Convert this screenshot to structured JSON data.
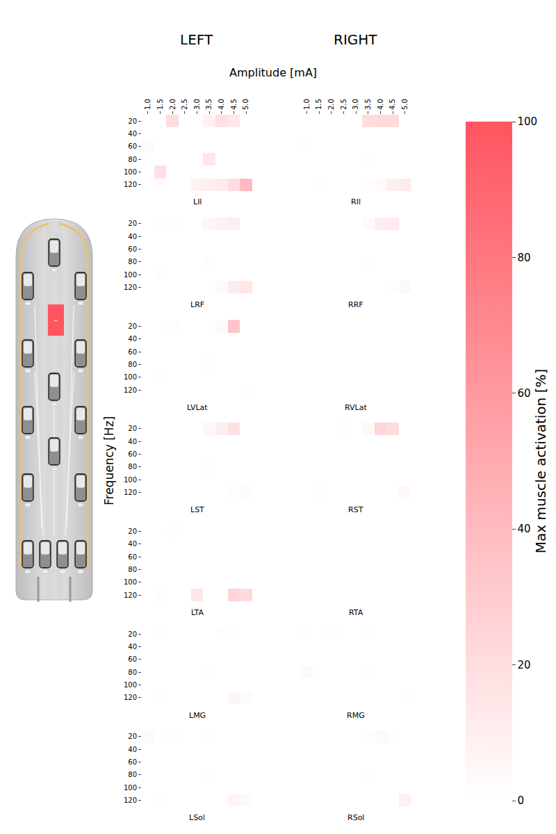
{
  "chart_data": {
    "type": "heatmap",
    "titles": [
      "LEFT",
      "RIGHT"
    ],
    "x_label": "Amplitude [mA]",
    "y_label": "Frequency [Hz]",
    "x_categories": [
      "1.0",
      "1.5",
      "2.0",
      "2.5",
      "3.0",
      "3.5",
      "4.0",
      "4.5",
      "5.0"
    ],
    "y_categories": [
      20,
      40,
      60,
      80,
      100,
      120
    ],
    "colorbar": {
      "title": "Max muscle activation [%]",
      "range": [
        0,
        100
      ],
      "ticks": [
        0,
        20,
        40,
        60,
        80,
        100
      ],
      "colors": [
        "#ffffff",
        "#ff5560"
      ]
    },
    "panels": [
      {
        "name": "LIl",
        "side": "left",
        "values": [
          [
            0,
            0,
            20,
            0,
            0,
            8,
            18,
            15,
            0
          ],
          [
            0,
            0,
            0,
            0,
            0,
            0,
            0,
            0,
            0
          ],
          [
            3,
            0,
            0,
            0,
            0,
            0,
            0,
            0,
            0
          ],
          [
            0,
            0,
            0,
            0,
            0,
            15,
            0,
            0,
            0
          ],
          [
            0,
            18,
            0,
            0,
            0,
            0,
            0,
            0,
            0
          ],
          [
            0,
            2,
            0,
            0,
            8,
            10,
            12,
            20,
            40
          ]
        ]
      },
      {
        "name": "RIl",
        "side": "right",
        "values": [
          [
            0,
            0,
            0,
            0,
            0,
            20,
            22,
            22,
            0
          ],
          [
            0,
            0,
            0,
            0,
            0,
            0,
            0,
            0,
            0
          ],
          [
            1,
            0,
            0,
            0,
            0,
            0,
            0,
            0,
            0
          ],
          [
            0,
            0,
            0,
            0,
            0,
            2,
            0,
            0,
            0
          ],
          [
            0,
            0,
            0,
            0,
            0,
            0,
            0,
            0,
            0
          ],
          [
            0,
            2,
            0,
            0,
            0,
            2,
            3,
            10,
            12
          ]
        ]
      },
      {
        "name": "LRF",
        "side": "left",
        "values": [
          [
            0,
            2,
            2,
            0,
            0,
            5,
            8,
            10,
            0
          ],
          [
            0,
            0,
            0,
            0,
            0,
            0,
            0,
            0,
            0
          ],
          [
            0,
            0,
            0,
            0,
            0,
            0,
            0,
            0,
            0
          ],
          [
            0,
            0,
            0,
            0,
            0,
            2,
            0,
            0,
            0
          ],
          [
            0,
            2,
            0,
            0,
            0,
            0,
            0,
            0,
            0
          ],
          [
            0,
            0,
            0,
            0,
            0,
            0,
            3,
            12,
            15
          ]
        ]
      },
      {
        "name": "RRF",
        "side": "right",
        "values": [
          [
            0,
            0,
            0,
            0,
            0,
            3,
            10,
            12,
            0
          ],
          [
            0,
            0,
            0,
            0,
            0,
            0,
            0,
            0,
            0
          ],
          [
            0,
            0,
            0,
            0,
            0,
            0,
            0,
            0,
            0
          ],
          [
            0,
            0,
            0,
            0,
            0,
            1,
            0,
            0,
            0
          ],
          [
            0,
            0,
            0,
            0,
            0,
            0,
            0,
            0,
            0
          ],
          [
            0,
            0,
            0,
            0,
            0,
            0,
            0,
            2,
            5
          ]
        ]
      },
      {
        "name": "LVLat",
        "side": "left",
        "values": [
          [
            0,
            0,
            2,
            0,
            0,
            0,
            3,
            35,
            0
          ],
          [
            0,
            0,
            0,
            0,
            0,
            0,
            0,
            0,
            0
          ],
          [
            0,
            0,
            0,
            0,
            0,
            0,
            0,
            0,
            0
          ],
          [
            0,
            0,
            0,
            0,
            0,
            1,
            0,
            0,
            0
          ],
          [
            0,
            1,
            0,
            0,
            0,
            0,
            0,
            0,
            0
          ],
          [
            0,
            0,
            0,
            0,
            0,
            0,
            0,
            0,
            1
          ]
        ]
      },
      {
        "name": "RVLat",
        "side": "right",
        "values": [
          [
            0,
            0,
            0,
            0,
            0,
            0,
            0,
            0,
            0
          ],
          [
            0,
            0,
            0,
            0,
            0,
            0,
            0,
            0,
            0
          ],
          [
            0,
            0,
            0,
            0,
            0,
            0,
            0,
            0,
            0
          ],
          [
            0,
            0,
            0,
            0,
            0,
            0,
            0,
            0,
            0
          ],
          [
            0,
            0,
            0,
            0,
            0,
            0,
            0,
            0,
            0
          ],
          [
            0,
            0,
            0,
            0,
            0,
            0,
            0,
            0,
            0
          ]
        ]
      },
      {
        "name": "LST",
        "side": "left",
        "values": [
          [
            0,
            0,
            0,
            0,
            0,
            5,
            10,
            18,
            0
          ],
          [
            0,
            0,
            0,
            0,
            0,
            0,
            0,
            0,
            0
          ],
          [
            0,
            0,
            0,
            0,
            0,
            0,
            0,
            0,
            0
          ],
          [
            0,
            0,
            0,
            0,
            0,
            1,
            0,
            0,
            0
          ],
          [
            0,
            0,
            0,
            0,
            0,
            0,
            0,
            0,
            0
          ],
          [
            0,
            0,
            0,
            0,
            0,
            0,
            0,
            2,
            3
          ]
        ]
      },
      {
        "name": "RST",
        "side": "right",
        "values": [
          [
            0,
            0,
            0,
            1,
            0,
            5,
            25,
            20,
            0
          ],
          [
            0,
            0,
            0,
            0,
            0,
            0,
            0,
            0,
            0
          ],
          [
            0,
            0,
            0,
            0,
            0,
            0,
            0,
            0,
            0
          ],
          [
            0,
            0,
            0,
            0,
            0,
            0,
            0,
            0,
            0
          ],
          [
            0,
            0,
            0,
            0,
            0,
            0,
            0,
            0,
            0
          ],
          [
            0,
            1,
            0,
            0,
            0,
            0,
            0,
            0,
            4
          ]
        ]
      },
      {
        "name": "LTA",
        "side": "left",
        "values": [
          [
            0,
            0,
            1,
            0,
            0,
            0,
            0,
            0,
            0
          ],
          [
            0,
            0,
            0,
            0,
            0,
            0,
            0,
            0,
            0
          ],
          [
            0,
            0,
            0,
            0,
            0,
            0,
            0,
            0,
            0
          ],
          [
            0,
            0,
            0,
            0,
            0,
            0,
            0,
            0,
            0
          ],
          [
            0,
            0,
            0,
            0,
            0,
            0,
            0,
            0,
            0
          ],
          [
            0,
            2,
            0,
            0,
            15,
            0,
            0,
            25,
            22
          ]
        ]
      },
      {
        "name": "RTA",
        "side": "right",
        "values": [
          [
            0,
            0,
            0,
            0,
            0,
            0,
            0,
            0,
            0
          ],
          [
            0,
            0,
            0,
            0,
            0,
            0,
            0,
            0,
            0
          ],
          [
            0,
            0,
            0,
            0,
            0,
            0,
            0,
            0,
            0
          ],
          [
            0,
            0,
            0,
            0,
            0,
            0,
            0,
            0,
            0
          ],
          [
            0,
            0,
            0,
            0,
            0,
            0,
            0,
            0,
            0
          ],
          [
            0,
            0,
            0,
            0,
            0,
            0,
            0,
            0,
            0
          ]
        ]
      },
      {
        "name": "LMG",
        "side": "left",
        "values": [
          [
            0,
            1,
            0,
            0,
            0,
            0,
            2,
            1,
            0
          ],
          [
            0,
            0,
            0,
            0,
            0,
            0,
            0,
            0,
            0
          ],
          [
            0,
            0,
            0,
            0,
            0,
            0,
            0,
            0,
            0
          ],
          [
            0,
            0,
            0,
            0,
            0,
            1,
            0,
            0,
            0
          ],
          [
            0,
            0,
            0,
            0,
            0,
            0,
            0,
            0,
            0
          ],
          [
            0,
            1,
            0,
            0,
            0,
            0,
            0,
            6,
            3
          ]
        ]
      },
      {
        "name": "RMG",
        "side": "right",
        "values": [
          [
            1,
            0,
            1,
            0,
            0,
            1,
            0,
            0,
            0
          ],
          [
            0,
            0,
            0,
            0,
            0,
            0,
            0,
            0,
            0
          ],
          [
            0,
            0,
            0,
            0,
            0,
            0,
            0,
            0,
            0
          ],
          [
            4,
            0,
            0,
            0,
            0,
            1,
            0,
            0,
            0
          ],
          [
            0,
            0,
            0,
            0,
            0,
            0,
            0,
            0,
            0
          ],
          [
            0,
            0,
            0,
            0,
            0,
            0,
            0,
            0,
            1
          ]
        ]
      },
      {
        "name": "LSol",
        "side": "left",
        "values": [
          [
            3,
            0,
            2,
            0,
            0,
            2,
            0,
            0,
            0
          ],
          [
            0,
            0,
            0,
            0,
            0,
            0,
            0,
            0,
            0
          ],
          [
            0,
            0,
            0,
            0,
            0,
            0,
            0,
            0,
            0
          ],
          [
            0,
            0,
            0,
            0,
            0,
            1,
            0,
            0,
            0
          ],
          [
            0,
            0,
            0,
            0,
            0,
            0,
            0,
            0,
            0
          ],
          [
            0,
            1,
            0,
            0,
            0,
            0,
            0,
            6,
            4
          ]
        ]
      },
      {
        "name": "RSol",
        "side": "right",
        "values": [
          [
            0,
            0,
            0,
            0,
            0,
            2,
            4,
            2,
            0
          ],
          [
            0,
            0,
            0,
            0,
            0,
            0,
            0,
            0,
            0
          ],
          [
            0,
            0,
            0,
            0,
            0,
            0,
            0,
            0,
            0
          ],
          [
            0,
            0,
            0,
            0,
            0,
            1,
            0,
            0,
            0
          ],
          [
            0,
            0,
            0,
            0,
            0,
            0,
            0,
            0,
            0
          ],
          [
            0,
            0,
            0,
            0,
            0,
            0,
            0,
            0,
            8
          ]
        ]
      }
    ]
  },
  "diagram": {
    "cathode_label": "–"
  }
}
